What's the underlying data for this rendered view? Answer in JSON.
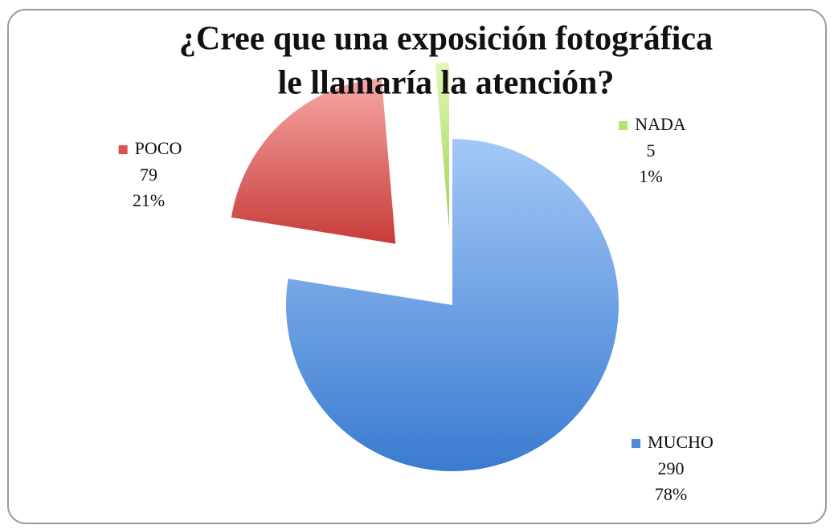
{
  "chart_data": {
    "type": "pie",
    "title": [
      "¿Cree que una exposición fotográfica",
      "le llamaría la atención?"
    ],
    "categories": [
      "MUCHO",
      "POCO",
      "NADA"
    ],
    "values": [
      290,
      79,
      5
    ],
    "percent_labels": [
      "78%",
      "21%",
      "1%"
    ],
    "colors": [
      "#4f8ad8",
      "#d9534f",
      "#b5e06a"
    ]
  }
}
